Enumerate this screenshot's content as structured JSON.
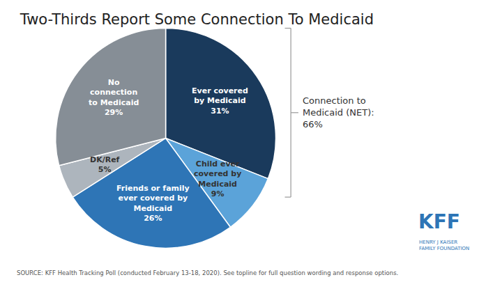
{
  "chart_data": {
    "type": "pie",
    "title": "Two-Thirds Report Some Connection To Medicaid",
    "categories": [
      "Ever covered\nby Medicaid\n31%",
      "Child ever\ncovered by\nMedicaid\n9%",
      "Friends or family\never covered by\nMedicaid\n26%",
      "DK/Ref\n5%",
      "No\nconnection\nto Medicaid\n29%"
    ],
    "values": [
      31,
      9,
      26,
      5,
      29
    ],
    "colors": [
      "#1a3a5c",
      "#5ba3d9",
      "#2e75b6",
      "#adb5bd",
      "#868e96"
    ],
    "data_labels": true,
    "legend": false,
    "annotations": [
      {
        "text": "Connection to\nMedicaid (NET):\n66%"
      },
      {
        "text": "SOURCE: KFF Health Tracking Poll (conducted February 13-18, 2020). See topline for full question wording and response options."
      },
      {
        "text": "KFF",
        "color": "#2e75b6"
      },
      {
        "text": "HENRY J KAISER\nFAMILY FOUNDATION",
        "color": "#2e75b6"
      }
    ]
  }
}
